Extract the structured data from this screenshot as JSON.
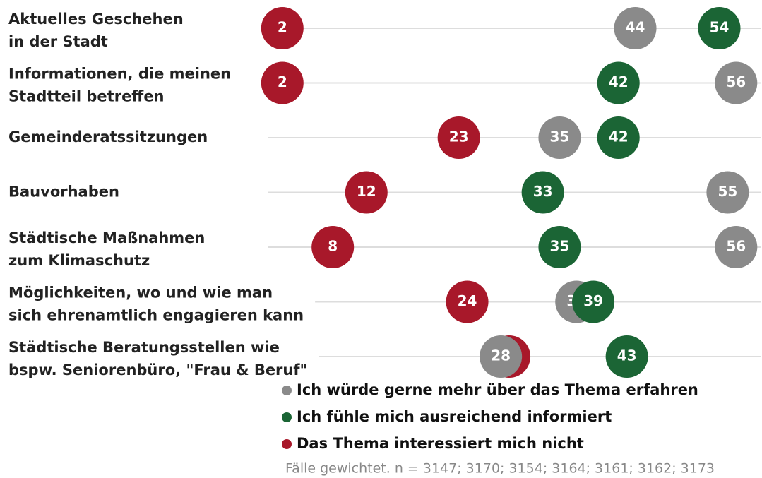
{
  "chart_data": {
    "type": "dot",
    "categories": [
      "Aktuelles Geschehen\nin der Stadt",
      "Informationen, die meinen\nStadtteil betreffen",
      "Gemeinderatssitzungen",
      "Bauvorhaben",
      "Städtische Maßnahmen\nzum Klimaschutz",
      "Möglichkeiten, wo und wie man\nsich ehrenamtlich engagieren kann",
      "Städtische Beratungsstellen wie\nbspw. Seniorenbüro, \"Frau & Beruf\""
    ],
    "series": [
      {
        "name": "Das Thema interessiert mich nicht",
        "color": "#a8182a",
        "values": [
          2,
          2,
          23,
          12,
          8,
          24,
          29
        ]
      },
      {
        "name": "Ich würde gerne mehr über das Thema erfahren",
        "color": "#8a8a8a",
        "values": [
          44,
          56,
          35,
          55,
          56,
          37,
          28
        ]
      },
      {
        "name": "Ich fühle mich ausreichend informiert",
        "color": "#1b6535",
        "values": [
          54,
          42,
          42,
          33,
          35,
          39,
          43
        ]
      }
    ],
    "legend_order": [
      1,
      2,
      0
    ],
    "xlim": [
      0,
      59
    ],
    "note": "Fälle gewichtet. n = 3147; 3170; 3154; 3164; 3161; 3162; 3173"
  }
}
